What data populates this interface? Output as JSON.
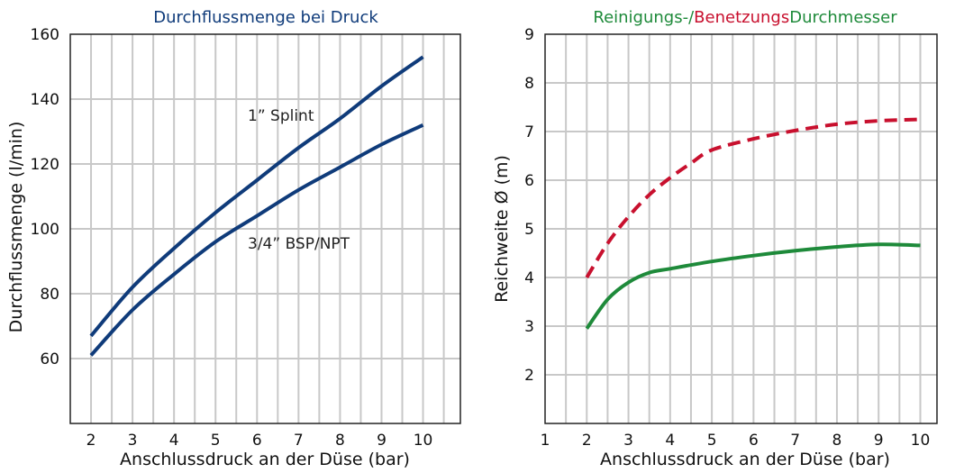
{
  "colors": {
    "navy": "#0f3b7a",
    "green": "#1e8a3a",
    "red": "#c8102e",
    "grid": "#c8c8c8",
    "axis": "#222222"
  },
  "chart_data": [
    {
      "type": "line",
      "title": "Durchflussmenge bei Druck",
      "xlabel": "Anschlussdruck an der Düse (bar)",
      "ylabel": "Durchflussmenge (l/min)",
      "xlim": [
        1.5,
        10.9
      ],
      "ylim": [
        40,
        160
      ],
      "x_ticks": [
        "2",
        "3",
        "4",
        "5",
        "6",
        "7",
        "8",
        "9",
        "10"
      ],
      "y_ticks": [
        "60",
        "80",
        "100",
        "120",
        "140",
        "160"
      ],
      "grid": true,
      "series": [
        {
          "name": "1” Splint",
          "x": [
            2,
            3,
            4,
            5,
            6,
            7,
            8,
            9,
            10
          ],
          "y": [
            67,
            82,
            94,
            105,
            115,
            125,
            134,
            144,
            153
          ]
        },
        {
          "name": "3/4” BSP/NPT",
          "x": [
            2,
            3,
            4,
            5,
            6,
            7,
            8,
            9,
            10
          ],
          "y": [
            61,
            75,
            86,
            96,
            104,
            112,
            119,
            126,
            132
          ]
        }
      ]
    },
    {
      "type": "line",
      "title_parts": [
        "Reinigungs-/",
        "Benetzungs",
        "Durchmesser"
      ],
      "xlabel": "Anschlussdruck an der Düse (bar)",
      "ylabel": "Reichweite Ø (m)",
      "xlim": [
        1,
        10.4
      ],
      "ylim": [
        1,
        9
      ],
      "x_ticks": [
        "1",
        "2",
        "3",
        "4",
        "5",
        "6",
        "7",
        "8",
        "9",
        "10"
      ],
      "y_ticks": [
        "2",
        "3",
        "4",
        "5",
        "6",
        "7",
        "8",
        "9"
      ],
      "grid": true,
      "series": [
        {
          "x": [
            2,
            2.5,
            3,
            3.5,
            4,
            5,
            6,
            7,
            8,
            9,
            10
          ],
          "y": [
            2.95,
            3.55,
            3.9,
            4.1,
            4.18,
            4.33,
            4.45,
            4.55,
            4.63,
            4.68,
            4.66
          ]
        },
        {
          "x": [
            2,
            2.5,
            3,
            3.5,
            4,
            4.5,
            5,
            6,
            7,
            8,
            9,
            10
          ],
          "y": [
            4.0,
            4.7,
            5.25,
            5.7,
            6.05,
            6.35,
            6.62,
            6.85,
            7.02,
            7.15,
            7.22,
            7.25
          ]
        }
      ]
    }
  ]
}
